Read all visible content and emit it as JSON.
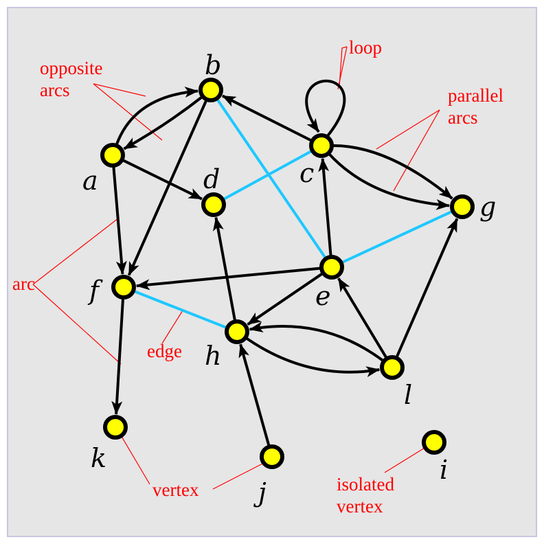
{
  "colors": {
    "background": "#e6e6e6",
    "frame": "#c7c7e0",
    "vertex_fill": "#ffff00",
    "vertex_stroke": "#000000",
    "arc": "#000000",
    "edge": "#1ec8ff",
    "annotation": "#ff0000",
    "label": "#000000"
  },
  "vertices": [
    {
      "id": "a",
      "label": "a"
    },
    {
      "id": "b",
      "label": "b"
    },
    {
      "id": "c",
      "label": "c"
    },
    {
      "id": "d",
      "label": "d"
    },
    {
      "id": "e",
      "label": "e"
    },
    {
      "id": "f",
      "label": "f"
    },
    {
      "id": "g",
      "label": "g"
    },
    {
      "id": "h",
      "label": "h"
    },
    {
      "id": "i",
      "label": "i"
    },
    {
      "id": "j",
      "label": "j"
    },
    {
      "id": "k",
      "label": "k"
    },
    {
      "id": "l",
      "label": "l"
    }
  ],
  "arcs": [
    {
      "from": "a",
      "to": "b"
    },
    {
      "from": "b",
      "to": "a"
    },
    {
      "from": "a",
      "to": "d"
    },
    {
      "from": "a",
      "to": "f"
    },
    {
      "from": "b",
      "to": "f"
    },
    {
      "from": "c",
      "to": "b"
    },
    {
      "from": "c",
      "to": "c"
    },
    {
      "from": "c",
      "to": "g"
    },
    {
      "from": "c",
      "to": "g"
    },
    {
      "from": "e",
      "to": "c"
    },
    {
      "from": "e",
      "to": "f"
    },
    {
      "from": "e",
      "to": "h"
    },
    {
      "from": "f",
      "to": "k"
    },
    {
      "from": "h",
      "to": "d"
    },
    {
      "from": "h",
      "to": "l"
    },
    {
      "from": "l",
      "to": "h"
    },
    {
      "from": "l",
      "to": "e"
    },
    {
      "from": "l",
      "to": "g"
    },
    {
      "from": "j",
      "to": "h"
    }
  ],
  "edges": [
    {
      "u": "b",
      "v": "e"
    },
    {
      "u": "c",
      "v": "d"
    },
    {
      "u": "e",
      "v": "g"
    },
    {
      "u": "f",
      "v": "h"
    }
  ],
  "annotations": {
    "opposite_arcs": [
      "opposite",
      "arcs"
    ],
    "loop": "loop",
    "parallel_arcs": [
      "parallel",
      "arcs"
    ],
    "arc": "arc",
    "edge": "edge",
    "vertex": "vertex",
    "isolated_vertex": [
      "isolated",
      "vertex"
    ]
  }
}
